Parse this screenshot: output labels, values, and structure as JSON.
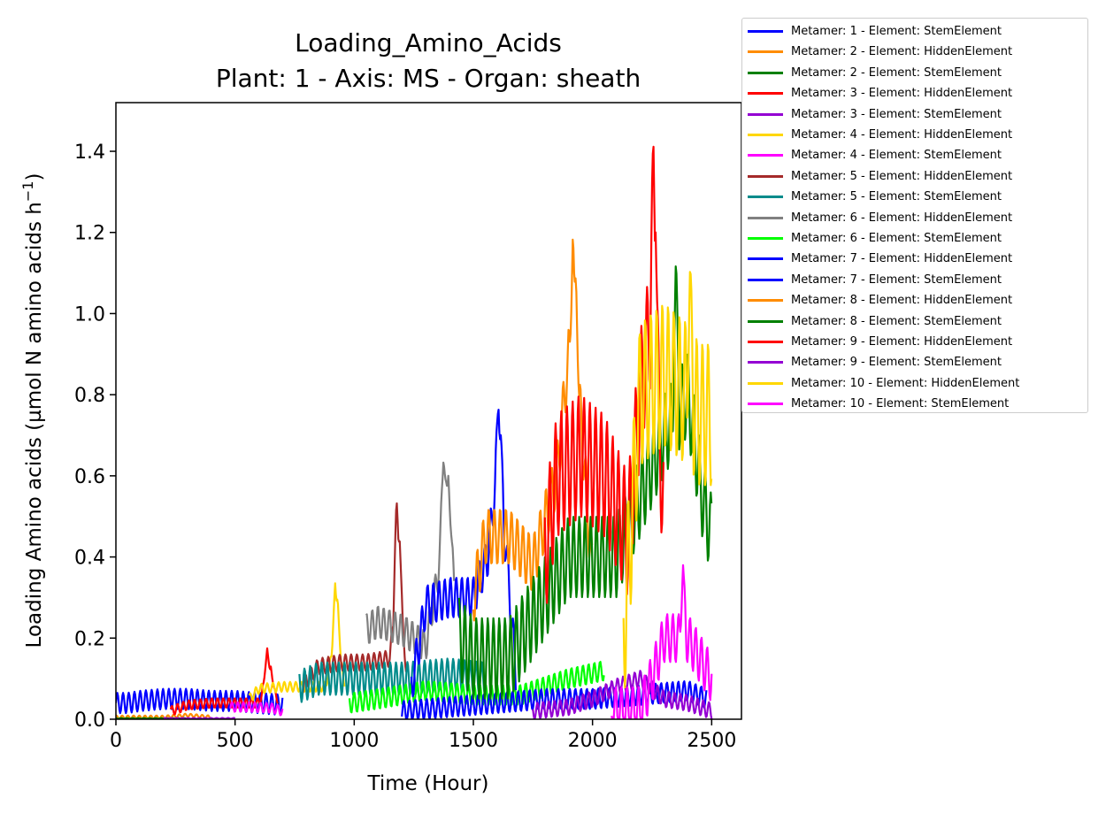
{
  "chart_data": {
    "type": "line",
    "title": "Loading_Amino_Acids",
    "subtitle": "Plant: 1 - Axis: MS - Organ: sheath",
    "xlabel": "Time (Hour)",
    "ylabel": "Loading Amino acids (µmol N amino acids h",
    "ylabel_sup": "−1",
    "ylabel_close": ")",
    "xlim": [
      0,
      2625
    ],
    "ylim": [
      0,
      1.52
    ],
    "xticks": [
      0,
      500,
      1000,
      1500,
      2000,
      2500
    ],
    "xtick_labels": [
      "0",
      "500",
      "1000",
      "1500",
      "2000",
      "2500"
    ],
    "yticks": [
      0.0,
      0.2,
      0.4,
      0.6,
      0.8,
      1.0,
      1.2,
      1.4
    ],
    "ytick_labels": [
      "0.0",
      "0.2",
      "0.4",
      "0.6",
      "0.8",
      "1.0",
      "1.2",
      "1.4"
    ],
    "grid": false,
    "legend_position": "outside-top-right",
    "series": [
      {
        "name": "Metamer: 1 - Element: StemElement",
        "color": "#0000ff",
        "start": 0,
        "end": 700,
        "points": [
          [
            0,
            0.04
          ],
          [
            50,
            0.04
          ],
          [
            100,
            0.045
          ],
          [
            200,
            0.05
          ],
          [
            300,
            0.05
          ],
          [
            400,
            0.045
          ],
          [
            500,
            0.045
          ],
          [
            600,
            0.04
          ],
          [
            700,
            0.035
          ]
        ],
        "amp": 0.025,
        "spikes": []
      },
      {
        "name": "Metamer: 2 - Element: HiddenElement",
        "color": "#ff8c00",
        "start": 0,
        "end": 400,
        "points": [
          [
            0,
            0.005
          ],
          [
            200,
            0.005
          ],
          [
            300,
            0.01
          ],
          [
            400,
            0.005
          ]
        ],
        "amp": 0.004,
        "spikes": []
      },
      {
        "name": "Metamer: 2 - Element: StemElement",
        "color": "#008000",
        "start": 0,
        "end": 300,
        "points": [
          [
            0,
            0.002
          ],
          [
            300,
            0.002
          ]
        ],
        "amp": 0.001,
        "spikes": []
      },
      {
        "name": "Metamer: 3 - Element: HiddenElement",
        "color": "#ff0000",
        "start": 230,
        "end": 680,
        "points": [
          [
            230,
            0.02
          ],
          [
            300,
            0.035
          ],
          [
            400,
            0.04
          ],
          [
            500,
            0.04
          ],
          [
            600,
            0.04
          ],
          [
            630,
            0.1
          ],
          [
            680,
            0.05
          ]
        ],
        "amp": 0.012,
        "spikes": [
          [
            635,
            0.175
          ],
          [
            650,
            0.13
          ]
        ]
      },
      {
        "name": "Metamer: 3 - Element: StemElement",
        "color": "#9400d3",
        "start": 200,
        "end": 500,
        "points": [
          [
            200,
            0.002
          ],
          [
            500,
            0.002
          ]
        ],
        "amp": 0.001,
        "spikes": []
      },
      {
        "name": "Metamer: 4 - Element: HiddenElement",
        "color": "#ffd700",
        "start": 560,
        "end": 960,
        "points": [
          [
            560,
            0.05
          ],
          [
            600,
            0.075
          ],
          [
            700,
            0.08
          ],
          [
            800,
            0.08
          ],
          [
            880,
            0.08
          ],
          [
            920,
            0.2
          ],
          [
            960,
            0.09
          ]
        ],
        "amp": 0.012,
        "spikes": [
          [
            920,
            0.335
          ],
          [
            930,
            0.3
          ]
        ]
      },
      {
        "name": "Metamer: 4 - Element: StemElement",
        "color": "#ff00ff",
        "start": 480,
        "end": 700,
        "points": [
          [
            480,
            0.03
          ],
          [
            550,
            0.03
          ],
          [
            650,
            0.028
          ],
          [
            700,
            0.02
          ]
        ],
        "amp": 0.012,
        "spikes": []
      },
      {
        "name": "Metamer: 5 - Element: HiddenElement",
        "color": "#a52a2a",
        "start": 780,
        "end": 1220,
        "points": [
          [
            780,
            0.08
          ],
          [
            850,
            0.13
          ],
          [
            950,
            0.14
          ],
          [
            1050,
            0.14
          ],
          [
            1150,
            0.15
          ],
          [
            1180,
            0.35
          ],
          [
            1220,
            0.12
          ]
        ],
        "amp": 0.02,
        "spikes": [
          [
            1178,
            0.545
          ],
          [
            1190,
            0.45
          ]
        ]
      },
      {
        "name": "Metamer: 5 - Element: StemElement",
        "color": "#008b8b",
        "start": 770,
        "end": 1550,
        "points": [
          [
            770,
            0.08
          ],
          [
            850,
            0.1
          ],
          [
            1000,
            0.1
          ],
          [
            1200,
            0.1
          ],
          [
            1400,
            0.11
          ],
          [
            1550,
            0.1
          ]
        ],
        "amp": 0.04,
        "spikes": []
      },
      {
        "name": "Metamer: 6 - Element: HiddenElement",
        "color": "#808080",
        "start": 1050,
        "end": 1420,
        "points": [
          [
            1050,
            0.22
          ],
          [
            1100,
            0.24
          ],
          [
            1200,
            0.22
          ],
          [
            1300,
            0.18
          ],
          [
            1350,
            0.35
          ],
          [
            1380,
            0.55
          ],
          [
            1420,
            0.35
          ]
        ],
        "amp": 0.04,
        "spikes": [
          [
            1375,
            0.645
          ],
          [
            1395,
            0.6
          ]
        ]
      },
      {
        "name": "Metamer: 6 - Element: StemElement",
        "color": "#00ff00",
        "start": 980,
        "end": 2050,
        "points": [
          [
            980,
            0.04
          ],
          [
            1100,
            0.05
          ],
          [
            1300,
            0.07
          ],
          [
            1500,
            0.06
          ],
          [
            1700,
            0.06
          ],
          [
            1900,
            0.1
          ],
          [
            2050,
            0.12
          ]
        ],
        "amp": 0.025,
        "spikes": []
      },
      {
        "name": "Metamer: 7 - Element: HiddenElement",
        "color": "#0000ff",
        "start": 1240,
        "end": 1680,
        "points": [
          [
            1240,
            0.08
          ],
          [
            1300,
            0.28
          ],
          [
            1400,
            0.3
          ],
          [
            1500,
            0.3
          ],
          [
            1560,
            0.4
          ],
          [
            1600,
            0.62
          ],
          [
            1640,
            0.4
          ],
          [
            1680,
            0.1
          ]
        ],
        "amp": 0.05,
        "spikes": [
          [
            1605,
            0.78
          ],
          [
            1615,
            0.7
          ]
        ]
      },
      {
        "name": "Metamer: 7 - Element: StemElement",
        "color": "#0000ff",
        "start": 1200,
        "end": 2480,
        "points": [
          [
            1200,
            0.02
          ],
          [
            1400,
            0.03
          ],
          [
            1600,
            0.04
          ],
          [
            1800,
            0.05
          ],
          [
            2000,
            0.05
          ],
          [
            2200,
            0.06
          ],
          [
            2400,
            0.07
          ],
          [
            2480,
            0.05
          ]
        ],
        "amp": 0.025,
        "spikes": []
      },
      {
        "name": "Metamer: 8 - Element: HiddenElement",
        "color": "#ff8c00",
        "start": 1500,
        "end": 2000,
        "points": [
          [
            1500,
            0.3
          ],
          [
            1550,
            0.45
          ],
          [
            1650,
            0.45
          ],
          [
            1750,
            0.38
          ],
          [
            1850,
            0.6
          ],
          [
            1900,
            0.9
          ],
          [
            1950,
            0.75
          ],
          [
            2000,
            0.35
          ]
        ],
        "amp": 0.07,
        "spikes": [
          [
            1918,
            1.21
          ],
          [
            1930,
            1.1
          ]
        ]
      },
      {
        "name": "Metamer: 8 - Element: StemElement",
        "color": "#008000",
        "start": 1440,
        "end": 2500,
        "points": [
          [
            1440,
            0.2
          ],
          [
            1500,
            0.15
          ],
          [
            1650,
            0.15
          ],
          [
            1800,
            0.3
          ],
          [
            1900,
            0.4
          ],
          [
            2100,
            0.4
          ],
          [
            2300,
            0.7
          ],
          [
            2400,
            0.8
          ],
          [
            2460,
            0.55
          ],
          [
            2500,
            0.45
          ]
        ],
        "amp": 0.1,
        "spikes": [
          [
            2350,
            1.14
          ]
        ]
      },
      {
        "name": "Metamer: 9 - Element: HiddenElement",
        "color": "#ff0000",
        "start": 1800,
        "end": 2300,
        "points": [
          [
            1800,
            0.4
          ],
          [
            1850,
            0.6
          ],
          [
            1950,
            0.65
          ],
          [
            2050,
            0.6
          ],
          [
            2150,
            0.45
          ],
          [
            2200,
            0.8
          ],
          [
            2250,
            1.0
          ],
          [
            2300,
            0.5
          ]
        ],
        "amp": 0.15,
        "spikes": [
          [
            2255,
            1.44
          ],
          [
            2265,
            1.2
          ]
        ]
      },
      {
        "name": "Metamer: 9 - Element: StemElement",
        "color": "#9400d3",
        "start": 1750,
        "end": 2500,
        "points": [
          [
            1750,
            0.02
          ],
          [
            1900,
            0.03
          ],
          [
            2000,
            0.05
          ],
          [
            2100,
            0.08
          ],
          [
            2200,
            0.1
          ],
          [
            2300,
            0.05
          ],
          [
            2400,
            0.04
          ],
          [
            2500,
            0.02
          ]
        ],
        "amp": 0.02,
        "spikes": []
      },
      {
        "name": "Metamer: 10 - Element: HiddenElement",
        "color": "#ffd700",
        "start": 2130,
        "end": 2500,
        "points": [
          [
            2130,
            0.2
          ],
          [
            2200,
            0.8
          ],
          [
            2300,
            0.85
          ],
          [
            2400,
            0.8
          ],
          [
            2450,
            0.75
          ],
          [
            2500,
            0.75
          ]
        ],
        "amp": 0.18,
        "spikes": [
          [
            2410,
            1.12
          ]
        ]
      },
      {
        "name": "Metamer: 10 - Element: StemElement",
        "color": "#ff00ff",
        "start": 2080,
        "end": 2500,
        "points": [
          [
            2080,
            0.02
          ],
          [
            2200,
            0.02
          ],
          [
            2250,
            0.1
          ],
          [
            2300,
            0.2
          ],
          [
            2400,
            0.2
          ],
          [
            2450,
            0.15
          ],
          [
            2500,
            0.1
          ]
        ],
        "amp": 0.06,
        "spikes": [
          [
            2380,
            0.38
          ]
        ]
      }
    ]
  }
}
